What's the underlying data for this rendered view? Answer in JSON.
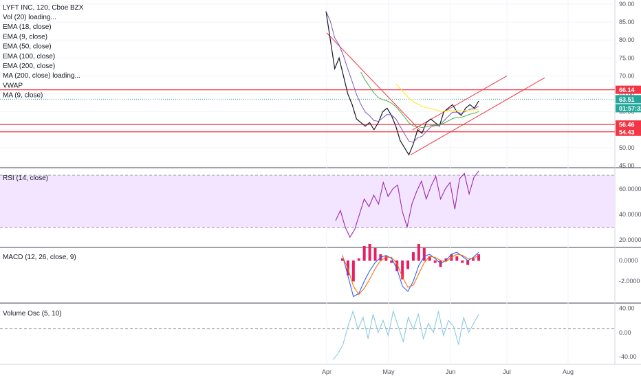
{
  "header": {
    "symbol_line": "LYFT INC, 120, Cboe BZX",
    "indicators": [
      "Vol (20) loading...",
      "EMA (18, close)",
      "EMA (9, close)",
      "EMA (50, close)",
      "EMA (100, close)",
      "EMA (200, close)",
      "MA (200, close) loading...",
      "VWAP",
      "MA (9, close)"
    ]
  },
  "price_axis": {
    "ticks": [
      "90.00",
      "85.00",
      "80.00",
      "75.00",
      "70.00",
      "65.00",
      "60.00",
      "55.00",
      "50.00",
      "45.00"
    ],
    "badges": [
      {
        "text": "66.14",
        "value": 66.14,
        "color": "#f23645"
      },
      {
        "text": "63.51",
        "value": 63.51,
        "color": "#26a69a"
      },
      {
        "text": "01:57:32",
        "value": 61.0,
        "color": "#26a69a"
      },
      {
        "text": "56.46",
        "value": 56.46,
        "color": "#f23645"
      },
      {
        "text": "54.43",
        "value": 54.43,
        "color": "#f23645"
      }
    ]
  },
  "rsi": {
    "label": "RSI (14, close)",
    "ticks": [
      "60.0000",
      "40.0000",
      "20.0000"
    ]
  },
  "macd": {
    "label": "MACD (12, 26, close, 9)",
    "ticks": [
      "0.0000",
      "-2.0000"
    ]
  },
  "vosc": {
    "label": "Volume Osc (5, 10)",
    "ticks": [
      "40.00",
      "0.00",
      "-40.00"
    ]
  },
  "time_axis": {
    "labels": [
      "Apr",
      "May",
      "Jun",
      "Jul",
      "Aug"
    ]
  },
  "colors": {
    "candle": "#131722",
    "red_line": "#f23645",
    "green": "#26a69a",
    "rsi": "#9c27b0",
    "rsi_band": "#f3e5ff",
    "macd": "#2962ff",
    "signal": "#ff6d00",
    "hist": "#e91e63",
    "vosc": "#89c9e6",
    "ema_green": "#4caf50",
    "ema_yellow": "#ffeb3b",
    "ema_purple": "#7e57c2"
  },
  "chart_data": [
    {
      "type": "line",
      "title": "LYFT INC, 120, Cboe BZX",
      "ylim": [
        45,
        90
      ],
      "x_labels": [
        "Apr",
        "May",
        "Jun",
        "Jul",
        "Aug"
      ],
      "horizontal_levels": [
        66.14,
        56.46,
        54.43
      ],
      "last_price": 63.51,
      "series": [
        {
          "values": [
            88,
            80,
            72,
            75,
            70,
            65,
            62,
            58,
            57,
            56,
            57,
            55,
            57,
            60,
            61,
            59,
            56,
            52,
            50,
            48,
            51,
            55,
            54,
            57,
            58,
            57,
            56,
            60,
            61,
            62,
            60,
            59,
            61,
            62,
            61,
            63
          ]
        }
      ]
    },
    {
      "type": "line",
      "title": "RSI (14, close)",
      "ylim": [
        15,
        75
      ],
      "series": [
        {
          "values": [
            35,
            43,
            30,
            22,
            28,
            40,
            52,
            46,
            55,
            48,
            65,
            54,
            60,
            63,
            42,
            30,
            48,
            58,
            66,
            52,
            62,
            70,
            52,
            60,
            65,
            44,
            68,
            72,
            56,
            69,
            74
          ]
        }
      ]
    },
    {
      "type": "line",
      "title": "MACD (12, 26, close, 9)",
      "ylim": [
        -4,
        1
      ],
      "series": [
        {
          "name": "MACD",
          "values": [
            0.5,
            -1.5,
            -3.5,
            -3.2,
            -2.0,
            -1.0,
            -0.2,
            0.3,
            0.5,
            0.2,
            -0.8,
            -2.5,
            -3.0,
            -2.0,
            -0.5,
            0.4,
            0.6,
            0.2,
            -0.3,
            0.0,
            0.6,
            0.8,
            0.4,
            0.0,
            0.3,
            0.8
          ]
        },
        {
          "name": "Signal",
          "values": [
            0.4,
            -0.8,
            -2.5,
            -3.3,
            -2.7,
            -1.8,
            -0.8,
            0.0,
            0.3,
            0.3,
            -0.3,
            -1.6,
            -2.6,
            -2.4,
            -1.3,
            -0.2,
            0.4,
            0.3,
            0.0,
            -0.1,
            0.3,
            0.6,
            0.5,
            0.2,
            0.2,
            0.5
          ]
        }
      ]
    },
    {
      "type": "line",
      "title": "Volume Osc (5, 10)",
      "ylim": [
        -50,
        45
      ],
      "series": [
        {
          "values": [
            -45,
            -35,
            -20,
            10,
            35,
            5,
            25,
            -10,
            30,
            0,
            20,
            -5,
            35,
            10,
            -15,
            25,
            5,
            30,
            -10,
            15,
            0,
            35,
            -5,
            20,
            10,
            -20,
            25,
            0,
            15,
            30
          ]
        }
      ]
    }
  ]
}
